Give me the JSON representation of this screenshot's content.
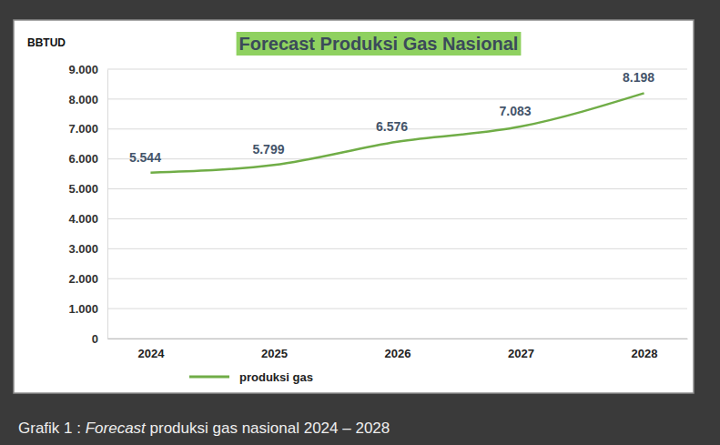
{
  "chart_data": {
    "type": "line",
    "title": "Forecast Produksi Gas Nasional",
    "y_label": "BBTUD",
    "categories": [
      "2024",
      "2025",
      "2026",
      "2027",
      "2028"
    ],
    "series": [
      {
        "name": "produksi gas",
        "color": "#70ad47",
        "values": [
          5544,
          5799,
          6576,
          7083,
          8198
        ],
        "value_labels": [
          "5.544",
          "5.799",
          "6.576",
          "7.083",
          "8.198"
        ]
      }
    ],
    "ylim": [
      0,
      9000
    ],
    "yticks": [
      0,
      {
        "value": 1000,
        "label": "1.000"
      },
      {
        "value": 2000,
        "label": "2.000"
      },
      {
        "value": 3000,
        "label": "3.000"
      },
      {
        "value": 4000,
        "label": "4.000"
      },
      {
        "value": 5000,
        "label": "5.000"
      },
      {
        "value": 6000,
        "label": "6.000"
      },
      {
        "value": 7000,
        "label": "7.000"
      },
      {
        "value": 8000,
        "label": "8.000"
      },
      {
        "value": 9000,
        "label": "9.000"
      }
    ],
    "grid": true,
    "legend": "bottom",
    "data_labels": true,
    "caption": [
      "Grafik 1 : ",
      "Forecast",
      " produksi gas nasional 2024 – 2028"
    ]
  }
}
